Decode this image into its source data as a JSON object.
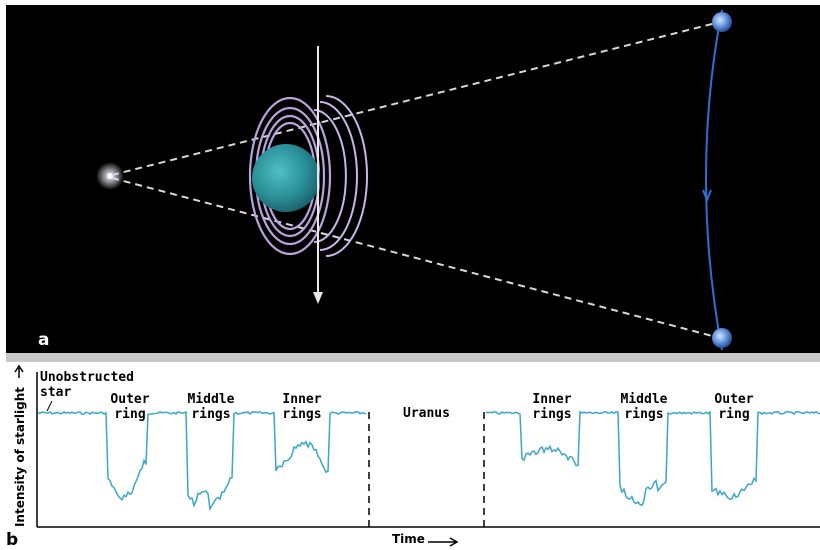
{
  "panel_a": {
    "letter": "a"
  },
  "panel_b": {
    "letter": "b",
    "y_axis_label": "Intensity of starlight",
    "x_axis_label": "Time",
    "labels": {
      "unobstructed_line1": "Unobstructed",
      "unobstructed_line2": "star",
      "outer_ring_left_1": "Outer",
      "outer_ring_left_2": "ring",
      "middle_rings_left_1": "Middle",
      "middle_rings_left_2": "rings",
      "inner_rings_left_1": "Inner",
      "inner_rings_left_2": "rings",
      "uranus": "Uranus",
      "inner_rings_right_1": "Inner",
      "inner_rings_right_2": "rings",
      "middle_rings_right_1": "Middle",
      "middle_rings_right_2": "rings",
      "outer_ring_right_1": "Outer",
      "outer_ring_right_2": "ring"
    }
  },
  "colors": {
    "space": "#000000",
    "planet": "#2f9ea6",
    "rings": "#b9a3dc",
    "light_curve": "#3aa7c9",
    "orbit": "#2f6fd0"
  }
}
